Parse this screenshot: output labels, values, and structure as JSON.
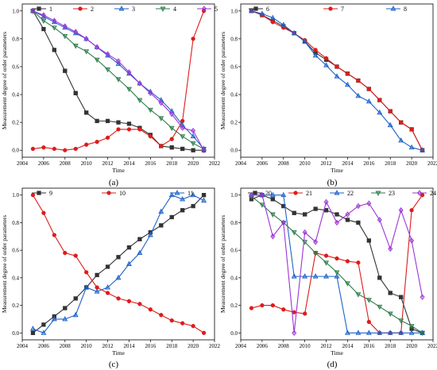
{
  "panel_labels": [
    "(a)",
    "(b)",
    "(c)",
    "(d)"
  ],
  "colors": {
    "black": "#333333",
    "red": "#dd1c1c",
    "blue": "#1f62c9",
    "green": "#2e7d4b",
    "purple": "#9b34d6"
  },
  "chart_data": [
    {
      "type": "line",
      "caption": "(a)",
      "xlabel": "Time",
      "ylabel": "Measurement degree of order parameters",
      "xlim": [
        2004,
        2022
      ],
      "ylim": [
        -0.05,
        1.05
      ],
      "xticks": [
        "2004",
        "2006",
        "2008",
        "2010",
        "2012",
        "2014",
        "2016",
        "2018",
        "2020",
        "2022"
      ],
      "yticks": [
        "0.0",
        "0.2",
        "0.4",
        "0.6",
        "0.8",
        "1.0"
      ],
      "legend_position": "top",
      "x": [
        2005,
        2006,
        2007,
        2008,
        2009,
        2010,
        2011,
        2012,
        2013,
        2014,
        2015,
        2016,
        2017,
        2018,
        2019,
        2020,
        2021
      ],
      "series": [
        {
          "name": "1",
          "color": "black",
          "marker": "square",
          "values": [
            1.0,
            0.87,
            0.72,
            0.57,
            0.41,
            0.27,
            0.21,
            0.21,
            0.2,
            0.19,
            0.16,
            0.11,
            0.03,
            0.02,
            0.01,
            0.0,
            0.0
          ]
        },
        {
          "name": "2",
          "color": "red",
          "marker": "circle",
          "values": [
            0.01,
            0.02,
            0.01,
            0.0,
            0.01,
            0.04,
            0.06,
            0.09,
            0.15,
            0.15,
            0.15,
            0.1,
            0.03,
            0.08,
            0.21,
            0.8,
            1.0
          ]
        },
        {
          "name": "3",
          "color": "blue",
          "marker": "triangle-up",
          "values": [
            1.0,
            0.96,
            0.92,
            0.88,
            0.84,
            0.8,
            0.74,
            0.68,
            0.62,
            0.55,
            0.48,
            0.42,
            0.36,
            0.28,
            0.18,
            0.1,
            0.01
          ]
        },
        {
          "name": "4",
          "color": "green",
          "marker": "triangle-down",
          "values": [
            1.0,
            0.93,
            0.88,
            0.82,
            0.75,
            0.71,
            0.65,
            0.58,
            0.51,
            0.44,
            0.36,
            0.29,
            0.23,
            0.16,
            0.1,
            0.05,
            0.01
          ]
        },
        {
          "name": "5",
          "color": "purple",
          "marker": "diamond",
          "values": [
            1.0,
            0.97,
            0.93,
            0.89,
            0.85,
            0.8,
            0.74,
            0.69,
            0.64,
            0.56,
            0.48,
            0.41,
            0.34,
            0.26,
            0.16,
            0.14,
            0.0
          ]
        }
      ]
    },
    {
      "type": "line",
      "caption": "(b)",
      "xlabel": "Time",
      "ylabel": "Measurement degree of order parameters",
      "xlim": [
        2004,
        2022
      ],
      "ylim": [
        -0.05,
        1.05
      ],
      "xticks": [
        "2004",
        "2006",
        "2008",
        "2010",
        "2012",
        "2014",
        "2016",
        "2018",
        "2020",
        "2022"
      ],
      "yticks": [
        "0.0",
        "0.2",
        "0.4",
        "0.6",
        "0.8",
        "1.0"
      ],
      "legend_position": "top",
      "x": [
        2005,
        2006,
        2007,
        2008,
        2009,
        2010,
        2011,
        2012,
        2013,
        2014,
        2015,
        2016,
        2017,
        2018,
        2019,
        2020,
        2021
      ],
      "series": [
        {
          "name": "6",
          "color": "black",
          "marker": "square",
          "values": [
            1.0,
            0.97,
            0.93,
            0.89,
            0.84,
            0.78,
            0.7,
            0.65,
            0.6,
            0.55,
            0.5,
            0.44,
            0.36,
            0.28,
            0.2,
            0.15,
            0.0
          ]
        },
        {
          "name": "7",
          "color": "red",
          "marker": "circle",
          "values": [
            1.0,
            0.97,
            0.92,
            0.88,
            0.84,
            0.79,
            0.72,
            0.66,
            0.6,
            0.55,
            0.5,
            0.44,
            0.36,
            0.28,
            0.2,
            0.15,
            0.0
          ]
        },
        {
          "name": "8",
          "color": "blue",
          "marker": "triangle-up",
          "values": [
            1.0,
            0.98,
            0.95,
            0.9,
            0.84,
            0.78,
            0.68,
            0.61,
            0.53,
            0.47,
            0.39,
            0.35,
            0.27,
            0.18,
            0.07,
            0.02,
            0.0
          ]
        }
      ]
    },
    {
      "type": "line",
      "caption": "(c)",
      "xlabel": "Time",
      "ylabel": "Measurement degree of order parameters",
      "xlim": [
        2004,
        2022
      ],
      "ylim": [
        -0.05,
        1.05
      ],
      "xticks": [
        "2004",
        "2006",
        "2008",
        "2010",
        "2012",
        "2014",
        "2016",
        "2018",
        "2020",
        "2022"
      ],
      "yticks": [
        "0.0",
        "0.2",
        "0.4",
        "0.6",
        "0.8",
        "1.0"
      ],
      "legend_position": "top",
      "x": [
        2005,
        2006,
        2007,
        2008,
        2009,
        2010,
        2011,
        2012,
        2013,
        2014,
        2015,
        2016,
        2017,
        2018,
        2019,
        2020,
        2021
      ],
      "series": [
        {
          "name": "9",
          "color": "black",
          "marker": "square",
          "values": [
            0.0,
            0.06,
            0.12,
            0.18,
            0.25,
            0.33,
            0.42,
            0.48,
            0.55,
            0.62,
            0.68,
            0.73,
            0.78,
            0.84,
            0.89,
            0.92,
            1.0
          ]
        },
        {
          "name": "10",
          "color": "red",
          "marker": "circle",
          "values": [
            1.0,
            0.87,
            0.71,
            0.58,
            0.56,
            0.44,
            0.33,
            0.29,
            0.25,
            0.23,
            0.21,
            0.17,
            0.13,
            0.09,
            0.07,
            0.05,
            0.0
          ]
        },
        {
          "name": "11",
          "color": "blue",
          "marker": "triangle-up",
          "values": [
            0.03,
            0.0,
            0.1,
            0.1,
            0.13,
            0.33,
            0.3,
            0.33,
            0.4,
            0.5,
            0.58,
            0.71,
            0.88,
            1.0,
            0.97,
            1.0,
            0.96
          ]
        }
      ]
    },
    {
      "type": "line",
      "caption": "(d)",
      "xlabel": "Time",
      "ylabel": "Measurement degree of order parameters",
      "xlim": [
        2004,
        2022
      ],
      "ylim": [
        -0.05,
        1.05
      ],
      "xticks": [
        "2004",
        "2006",
        "2008",
        "2010",
        "2012",
        "2014",
        "2016",
        "2018",
        "2020",
        "2022"
      ],
      "yticks": [
        "0.0",
        "0.2",
        "0.4",
        "0.6",
        "0.8",
        "1.0"
      ],
      "legend_position": "top",
      "x": [
        2005,
        2006,
        2007,
        2008,
        2009,
        2010,
        2011,
        2012,
        2013,
        2014,
        2015,
        2016,
        2017,
        2018,
        2019,
        2020,
        2021
      ],
      "series": [
        {
          "name": "20",
          "color": "black",
          "marker": "square",
          "values": [
            0.97,
            1.0,
            0.97,
            0.92,
            0.87,
            0.86,
            0.9,
            0.89,
            0.86,
            0.82,
            0.8,
            0.67,
            0.4,
            0.29,
            0.26,
            0.03,
            0.0
          ]
        },
        {
          "name": "21",
          "color": "red",
          "marker": "circle",
          "values": [
            0.18,
            0.2,
            0.2,
            0.17,
            0.15,
            0.14,
            0.58,
            0.56,
            0.54,
            0.52,
            0.51,
            0.08,
            0.0,
            0.0,
            0.0,
            0.89,
            1.0
          ]
        },
        {
          "name": "22",
          "color": "blue",
          "marker": "triangle-up",
          "values": [
            1.0,
            1.0,
            1.0,
            1.0,
            0.41,
            0.41,
            0.41,
            0.41,
            0.41,
            0.0,
            0.0,
            0.0,
            0.0,
            0.0,
            0.0,
            0.0,
            0.0
          ]
        },
        {
          "name": "23",
          "color": "green",
          "marker": "triangle-down",
          "values": [
            0.99,
            0.93,
            0.86,
            0.8,
            0.73,
            0.66,
            0.58,
            0.51,
            0.44,
            0.36,
            0.28,
            0.24,
            0.19,
            0.14,
            0.09,
            0.05,
            0.0
          ]
        },
        {
          "name": "24",
          "color": "purple",
          "marker": "diamond",
          "values": [
            1.0,
            1.0,
            0.7,
            0.8,
            0.0,
            0.73,
            0.66,
            0.95,
            0.8,
            0.86,
            0.92,
            0.94,
            0.82,
            0.61,
            0.89,
            0.67,
            0.26
          ]
        }
      ]
    }
  ]
}
